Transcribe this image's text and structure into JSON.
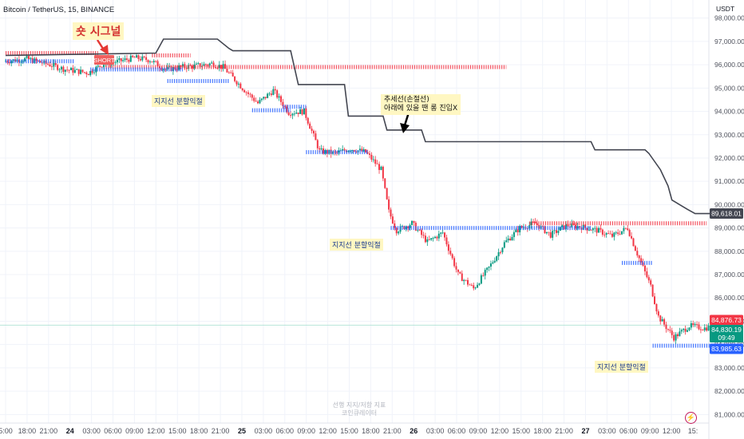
{
  "header": {
    "symbol_title": "Bitcoin / TetherUS, 15, BINANCE",
    "currency": "USDT"
  },
  "annotations": {
    "short_signal": "숏 시그널",
    "short_tag": "SHORT",
    "trend_note_line1": "추세선(손절선)",
    "trend_note_line2": "아래에 있을 땐 롱 진입X",
    "support_note": "지지선 분할익절"
  },
  "watermark": {
    "line1": "선행 지지/저항 지표",
    "line2": "코인큐레이터"
  },
  "price_labels": {
    "trend_value": "89,618.01",
    "upper_value": "84,876.73",
    "last_value": "84,830.19",
    "countdown": "09:49",
    "lower_value": "83,985.63"
  },
  "colors": {
    "background": "#ffffff",
    "grid": "#f0f3fa",
    "candle_up": "#089981",
    "candle_down": "#f23645",
    "resistance": "#f23645",
    "support": "#2962ff",
    "trend_line": "#434651",
    "last_price": "#089981",
    "note_bg": "#fff7c2"
  },
  "chart_data": {
    "type": "candlestick",
    "y_axis": {
      "range": [
        80600,
        98400
      ],
      "ticks": [
        81000,
        82000,
        83000,
        84000,
        85000,
        86000,
        87000,
        88000,
        89000,
        90000,
        91000,
        92000,
        93000,
        94000,
        95000,
        96000,
        97000,
        98000
      ],
      "tick_labels": [
        "81,000.00",
        "82,000.00",
        "83,000.00",
        "84,000.00",
        "85,000.00",
        "86,000.00",
        "87,000.00",
        "88,000.00",
        "89,000.00",
        "90,000.00",
        "91,000.00",
        "92,000.00",
        "93,000.00",
        "94,000.00",
        "95,000.00",
        "96,000.00",
        "97,000.00",
        "98,000.00"
      ]
    },
    "x_axis": {
      "labels": [
        "5:00",
        "18:00",
        "21:00",
        "24",
        "03:00",
        "06:00",
        "09:00",
        "12:00",
        "15:00",
        "18:00",
        "21:00",
        "25",
        "03:00",
        "06:00",
        "09:00",
        "12:00",
        "15:00",
        "18:00",
        "21:00",
        "26",
        "03:00",
        "06:00",
        "09:00",
        "12:00",
        "15:00",
        "18:00",
        "21:00",
        "27",
        "03:00",
        "06:00",
        "09:00",
        "12:00",
        "15:"
      ],
      "day_labels": [
        "24",
        "25",
        "26",
        "27"
      ]
    },
    "price_path": {
      "hours": [
        -9,
        -6,
        -3,
        -1,
        2,
        4,
        6,
        8,
        10,
        12,
        14,
        16,
        18,
        19.5,
        22,
        24,
        26,
        28,
        30,
        32,
        34,
        36,
        38,
        40,
        41,
        42,
        44,
        46,
        48,
        50,
        52,
        54,
        56,
        58,
        60,
        62,
        64,
        66,
        68,
        70,
        72,
        73,
        74,
        75,
        76,
        78,
        80,
        82,
        84,
        85
      ],
      "prices": [
        96150,
        96250,
        96000,
        95800,
        95650,
        96050,
        96150,
        96300,
        96200,
        95800,
        95900,
        95950,
        96050,
        95900,
        95000,
        94350,
        94900,
        93950,
        94000,
        92300,
        92200,
        92400,
        92250,
        91500,
        89700,
        88900,
        89200,
        88400,
        88800,
        87000,
        86400,
        87300,
        88350,
        89000,
        89200,
        88700,
        89100,
        89050,
        88900,
        88650,
        89000,
        88100,
        87300,
        86500,
        85200,
        84300,
        84800,
        84700,
        84900,
        84830
      ]
    },
    "trend_line": {
      "hours": [
        -9,
        10.5,
        11.5,
        18.5,
        20,
        20.5,
        28,
        29,
        35,
        35.5,
        40,
        40.5,
        45,
        45.5,
        50,
        50.5,
        67,
        67.5,
        74,
        74.5,
        76,
        77,
        77.5,
        78.5,
        79.5,
        80.5,
        81.5,
        85
      ],
      "prices": [
        96400,
        96500,
        97100,
        97100,
        96700,
        96600,
        96600,
        95150,
        95150,
        93800,
        93800,
        93200,
        93200,
        92700,
        92700,
        92700,
        92700,
        92350,
        92350,
        92200,
        91500,
        90800,
        90200,
        90000,
        89800,
        89618,
        89618,
        89618
      ]
    },
    "levels": [
      {
        "kind": "resistance",
        "price": 96500,
        "from_hour": -9,
        "to_hour": 3
      },
      {
        "kind": "resistance",
        "price": 96400,
        "from_hour": 10,
        "to_hour": 15
      },
      {
        "kind": "resistance",
        "price": 95900,
        "from_hour": 4,
        "to_hour": 56
      },
      {
        "kind": "resistance",
        "price": 89200,
        "from_hour": 59,
        "to_hour": 82
      },
      {
        "kind": "support",
        "price": 96150,
        "from_hour": -9,
        "to_hour": 0
      },
      {
        "kind": "support",
        "price": 95800,
        "from_hour": 2,
        "to_hour": 14
      },
      {
        "kind": "support",
        "price": 95300,
        "from_hour": 12,
        "to_hour": 20
      },
      {
        "kind": "support",
        "price": 94050,
        "from_hour": 23,
        "to_hour": 28
      },
      {
        "kind": "support",
        "price": 94200,
        "from_hour": 27,
        "to_hour": 30
      },
      {
        "kind": "support",
        "price": 92250,
        "from_hour": 30,
        "to_hour": 38
      },
      {
        "kind": "support",
        "price": 89000,
        "from_hour": 41,
        "to_hour": 67
      },
      {
        "kind": "support",
        "price": 87500,
        "from_hour": 71,
        "to_hour": 75
      },
      {
        "kind": "support",
        "price": 83950,
        "from_hour": 75,
        "to_hour": 84
      }
    ]
  }
}
